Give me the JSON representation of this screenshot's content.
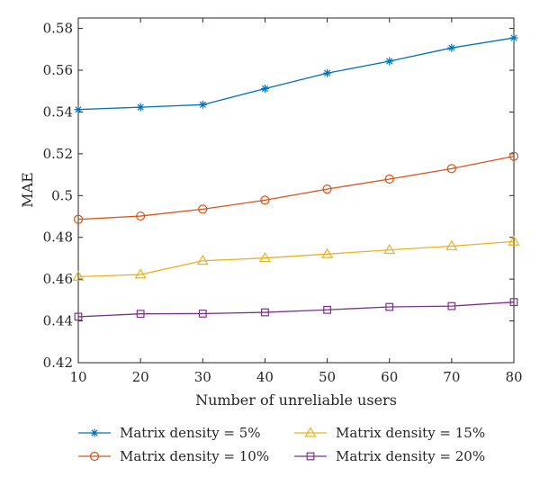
{
  "chart_data": {
    "type": "line",
    "title": "",
    "xlabel": "Number of unreliable users",
    "ylabel": "MAE",
    "xlim": [
      10,
      80
    ],
    "ylim": [
      0.42,
      0.585
    ],
    "xticks": [
      10,
      20,
      30,
      40,
      50,
      60,
      70,
      80
    ],
    "xtick_labels": [
      "10",
      "20",
      "30",
      "40",
      "50",
      "60",
      "70",
      "80"
    ],
    "yticks": [
      0.42,
      0.44,
      0.46,
      0.48,
      0.5,
      0.52,
      0.54,
      0.56,
      0.58
    ],
    "ytick_labels": [
      "0.42",
      "0.44",
      "0.46",
      "0.48",
      "0.5",
      "0.52",
      "0.54",
      "0.56",
      "0.58"
    ],
    "grid": false,
    "legend_position": "bottom",
    "x": [
      10,
      20,
      30,
      40,
      50,
      60,
      70,
      80
    ],
    "series": [
      {
        "name": "Matrix density = 5%",
        "color": "#0072BD",
        "marker": "asterisk",
        "values": [
          0.5412,
          0.5423,
          0.5435,
          0.5512,
          0.5586,
          0.5643,
          0.5707,
          0.5755
        ]
      },
      {
        "name": "Matrix density = 10%",
        "color": "#D95319",
        "marker": "circle",
        "values": [
          0.4886,
          0.4902,
          0.4935,
          0.4978,
          0.5031,
          0.5079,
          0.5129,
          0.5188
        ]
      },
      {
        "name": "Matrix density = 15%",
        "color": "#EDB120",
        "marker": "triangle",
        "values": [
          0.4612,
          0.4622,
          0.4688,
          0.4701,
          0.472,
          0.474,
          0.4758,
          0.478
        ]
      },
      {
        "name": "Matrix density = 20%",
        "color": "#7E2F8E",
        "marker": "square",
        "values": [
          0.442,
          0.4434,
          0.4435,
          0.4441,
          0.4453,
          0.4467,
          0.4471,
          0.449
        ]
      }
    ]
  }
}
